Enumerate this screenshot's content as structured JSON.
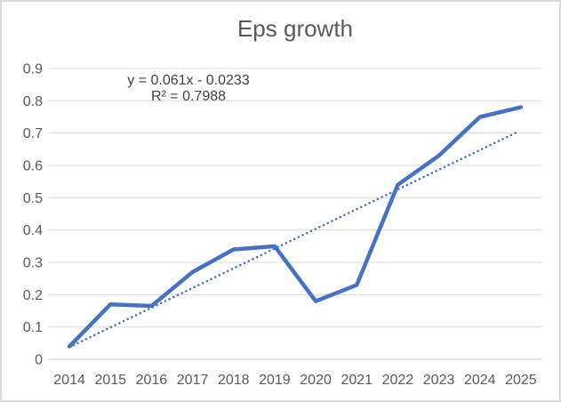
{
  "chart_data": {
    "type": "line",
    "title": "Eps growth",
    "categories": [
      "2014",
      "2015",
      "2016",
      "2017",
      "2018",
      "2019",
      "2020",
      "2021",
      "2022",
      "2023",
      "2024",
      "2025"
    ],
    "series": [
      {
        "name": "Eps growth",
        "color": "#4472C4",
        "style": "solid",
        "values": [
          0.04,
          0.17,
          0.165,
          0.27,
          0.34,
          0.35,
          0.18,
          0.23,
          0.54,
          0.63,
          0.75,
          0.78
        ]
      }
    ],
    "trendline": {
      "equation_label": "y = 0.061x - 0.0233",
      "r2_label": "R² = 0.7988",
      "slope": 0.061,
      "intercept": -0.0233,
      "color": "#4472C4",
      "style": "dotted"
    },
    "xlabel": "",
    "ylabel": "",
    "ylim": [
      0,
      0.9
    ],
    "ytick_step": 0.1,
    "ytick_labels": [
      "0",
      "0.1",
      "0.2",
      "0.3",
      "0.4",
      "0.5",
      "0.6",
      "0.7",
      "0.8",
      "0.9"
    ],
    "grid": true,
    "legend": "none",
    "colors": {
      "gridline": "#D9D9D9",
      "axis_line": "#D0D0D0",
      "axis_label": "#595959",
      "title": "#595959",
      "equation": "#404040",
      "frame_border": "#D9D9D9",
      "background": "#FFFFFF"
    }
  }
}
